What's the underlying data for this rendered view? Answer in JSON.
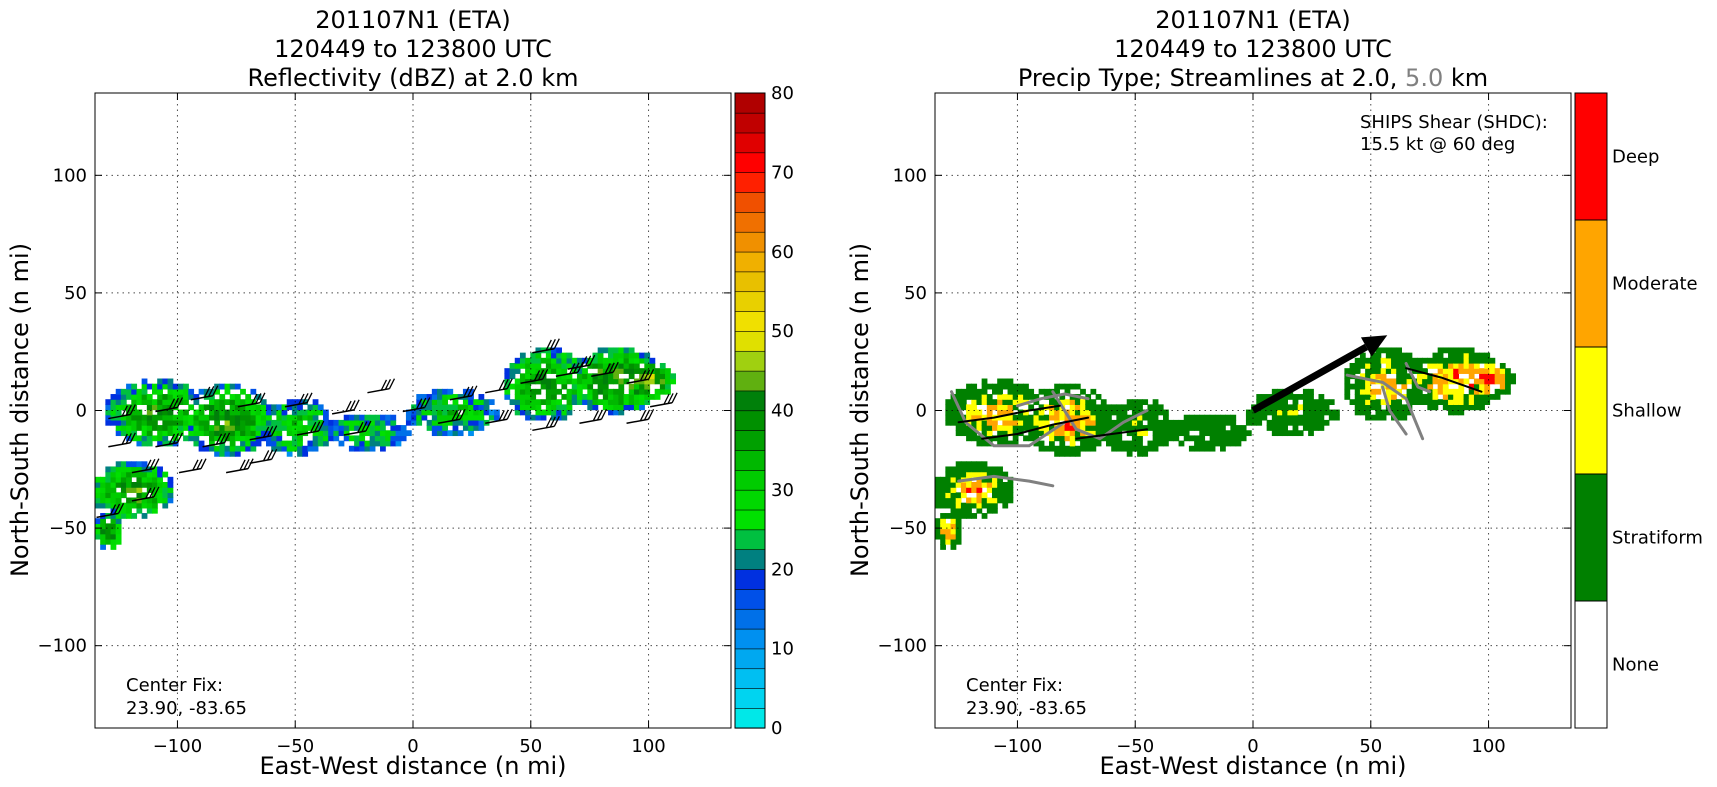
{
  "chart_data": [
    {
      "type": "heatmap",
      "title_lines": [
        "201107N1 (ETA)",
        "120449 to 123800 UTC",
        "Reflectivity (dBZ) at 2.0 km"
      ],
      "xlabel": "East-West distance (n mi)",
      "ylabel": "North-South distance (n mi)",
      "xlim": [
        -135,
        135
      ],
      "ylim": [
        -135,
        135
      ],
      "xticks": [
        -100,
        -50,
        0,
        50,
        100
      ],
      "xtick_labels": [
        "−100",
        "−50",
        "0",
        "50",
        "100"
      ],
      "yticks": [
        -100,
        -50,
        0,
        50,
        100
      ],
      "ytick_labels": [
        "−100",
        "−50",
        "0",
        "50",
        "100"
      ],
      "grid": true,
      "annotation_lines": [
        "Center Fix:",
        "23.90, -83.65"
      ],
      "colorbar": {
        "label": "",
        "min": 0,
        "max": 80,
        "step": 2.5,
        "tick_values": [
          0,
          10,
          20,
          30,
          40,
          50,
          60,
          70,
          80
        ],
        "tick_labels": [
          "0",
          "10",
          "20",
          "30",
          "40",
          "50",
          "60",
          "70",
          "80"
        ],
        "colors": [
          "#00e8e8",
          "#00d4f0",
          "#00bff2",
          "#00a8f0",
          "#0090f0",
          "#0070e8",
          "#0050e8",
          "#0030e0",
          "#008080",
          "#00c040",
          "#00e000",
          "#00d800",
          "#00cc00",
          "#00b800",
          "#00a000",
          "#009000",
          "#00800a",
          "#60b010",
          "#a0d010",
          "#e0e000",
          "#f0e000",
          "#e8d000",
          "#e8c000",
          "#f0b000",
          "#f09000",
          "#f07000",
          "#f05000",
          "#ff2000",
          "#ff0000",
          "#e00000",
          "#c00000",
          "#b00000",
          "#a00000",
          "#c00060",
          "#e000c0",
          "#f000f0",
          "#c040e0",
          "#a060d0",
          "#7a3a9a",
          "#4a2050",
          "#000000"
        ]
      },
      "data_sources": [
        {
          "comment": "schematic echo regions: center x, center y, radius x, radius y, in n mi; peak dBZ"
        },
        {
          "x": -110,
          "y": -2,
          "rx": 22,
          "ry": 14,
          "peak": 38
        },
        {
          "x": -80,
          "y": -5,
          "rx": 20,
          "ry": 15,
          "peak": 40
        },
        {
          "x": -50,
          "y": -8,
          "rx": 16,
          "ry": 12,
          "peak": 32
        },
        {
          "x": -20,
          "y": -10,
          "rx": 18,
          "ry": 8,
          "peak": 28
        },
        {
          "x": 15,
          "y": -2,
          "rx": 20,
          "ry": 10,
          "peak": 30
        },
        {
          "x": 55,
          "y": 10,
          "rx": 18,
          "ry": 16,
          "peak": 38
        },
        {
          "x": 85,
          "y": 12,
          "rx": 20,
          "ry": 14,
          "peak": 42
        },
        {
          "x": -120,
          "y": -35,
          "rx": 18,
          "ry": 12,
          "peak": 40
        },
        {
          "x": -130,
          "y": -52,
          "rx": 6,
          "ry": 8,
          "peak": 40
        },
        {
          "x": 100,
          "y": 12,
          "rx": 10,
          "ry": 8,
          "peak": 44
        }
      ],
      "wind_barbs": [
        [
          -120,
          -3
        ],
        [
          -100,
          0
        ],
        [
          -85,
          5
        ],
        [
          -65,
          2
        ],
        [
          -45,
          2
        ],
        [
          -25,
          -1
        ],
        [
          -120,
          -15
        ],
        [
          -100,
          -15
        ],
        [
          -80,
          -15
        ],
        [
          -60,
          -12
        ],
        [
          -40,
          -10
        ],
        [
          -20,
          -10
        ],
        [
          -110,
          -26
        ],
        [
          -90,
          -26
        ],
        [
          -70,
          -26
        ],
        [
          -60,
          -22
        ],
        [
          -10,
          8
        ],
        [
          5,
          0
        ],
        [
          25,
          5
        ],
        [
          40,
          8
        ],
        [
          55,
          12
        ],
        [
          70,
          15
        ],
        [
          85,
          15
        ],
        [
          100,
          12
        ],
        [
          20,
          -5
        ],
        [
          40,
          -5
        ],
        [
          60,
          -8
        ],
        [
          80,
          -5
        ],
        [
          100,
          -5
        ],
        [
          110,
          2
        ],
        [
          -110,
          -38
        ],
        [
          -125,
          -45
        ],
        [
          60,
          25
        ],
        [
          75,
          18
        ]
      ]
    },
    {
      "type": "heatmap",
      "title_lines": [
        "201107N1 (ETA)",
        "120449 to 123800 UTC"
      ],
      "title_line3_parts": [
        "Precip Type; Streamlines at 2.0, ",
        "5.0",
        " km"
      ],
      "title_line3_colors": [
        "#000000",
        "#808080",
        "#000000"
      ],
      "xlabel": "East-West distance (n mi)",
      "ylabel": "North-South distance (n mi)",
      "xlim": [
        -135,
        135
      ],
      "ylim": [
        -135,
        135
      ],
      "xticks": [
        -100,
        -50,
        0,
        50,
        100
      ],
      "xtick_labels": [
        "−100",
        "−50",
        "0",
        "50",
        "100"
      ],
      "yticks": [
        -100,
        -50,
        0,
        50,
        100
      ],
      "ytick_labels": [
        "−100",
        "−50",
        "0",
        "50",
        "100"
      ],
      "grid": true,
      "annotation_lines": [
        "Center Fix:",
        "23.90, -83.65"
      ],
      "shear_lines": [
        "SHIPS Shear (SHDC):",
        "15.5 kt @ 60 deg"
      ],
      "shear_vector": {
        "from": [
          0,
          0
        ],
        "to": [
          57,
          32
        ],
        "kt": 15.5,
        "deg": 60
      },
      "categories": [
        {
          "name": "None",
          "color": "#ffffff"
        },
        {
          "name": "Stratiform",
          "color": "#008000"
        },
        {
          "name": "Shallow",
          "color": "#ffff00"
        },
        {
          "name": "Moderate",
          "color": "#ffa500"
        },
        {
          "name": "Deep",
          "color": "#ff0000"
        }
      ],
      "streamlines_2km": [
        [
          [
            -125,
            -5
          ],
          [
            -110,
            -3
          ],
          [
            -95,
            0
          ],
          [
            -82,
            2
          ]
        ],
        [
          [
            -115,
            -12
          ],
          [
            -100,
            -10
          ],
          [
            -85,
            -6
          ],
          [
            -70,
            -3
          ]
        ],
        [
          [
            -75,
            -12
          ],
          [
            -60,
            -10
          ],
          [
            -45,
            -8
          ]
        ],
        [
          [
            65,
            18
          ],
          [
            80,
            14
          ],
          [
            97,
            8
          ]
        ]
      ],
      "streamlines_5km": [
        [
          [
            -128,
            8
          ],
          [
            -122,
            -5
          ],
          [
            -110,
            -15
          ],
          [
            -95,
            -15
          ],
          [
            -80,
            -5
          ]
        ],
        [
          [
            -125,
            -30
          ],
          [
            -110,
            -28
          ],
          [
            -95,
            -30
          ],
          [
            -85,
            -32
          ]
        ],
        [
          [
            -85,
            8
          ],
          [
            -75,
            -8
          ],
          [
            -65,
            -12
          ],
          [
            -55,
            -5
          ],
          [
            -45,
            0
          ]
        ],
        [
          [
            -100,
            2
          ],
          [
            -90,
            5
          ],
          [
            -80,
            7
          ],
          [
            -70,
            5
          ]
        ],
        [
          [
            40,
            15
          ],
          [
            55,
            12
          ],
          [
            65,
            5
          ],
          [
            72,
            -12
          ]
        ],
        [
          [
            55,
            10
          ],
          [
            58,
            0
          ],
          [
            65,
            -10
          ]
        ],
        [
          [
            65,
            20
          ],
          [
            70,
            10
          ],
          [
            75,
            8
          ]
        ]
      ]
    }
  ]
}
